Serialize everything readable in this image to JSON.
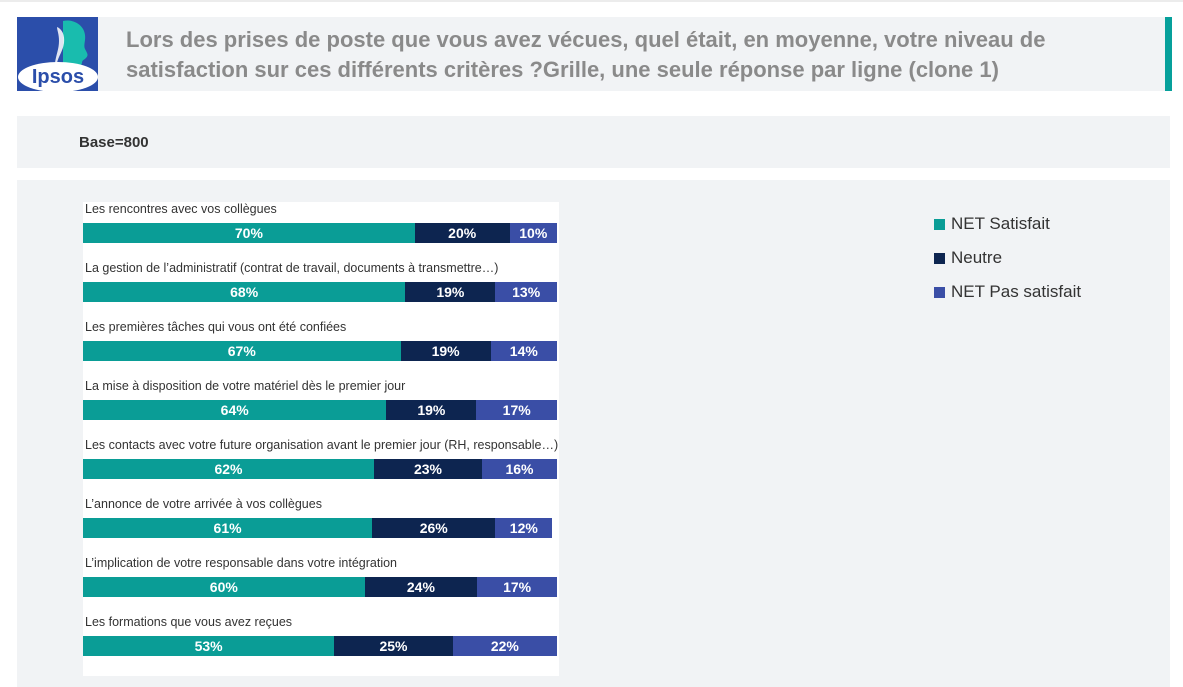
{
  "header": {
    "logo_text": "Ipsos",
    "title": "Lors des prises de poste que vous avez vécues, quel était, en moyenne, votre niveau de satisfaction sur ces différents critères ?Grille, une seule réponse par ligne (clone 1)"
  },
  "base": {
    "label": "Base=800"
  },
  "colors": {
    "accent": "#06a09b",
    "logo_blue": "#2b4eaa",
    "logo_teal": "#19bcae"
  },
  "chart_data": {
    "type": "bar",
    "orientation": "horizontal",
    "stacked": true,
    "categories": [
      "Les rencontres avec vos collègues",
      "La gestion de l’administratif (contrat de travail, documents à transmettre…)",
      "Les premières tâches qui vous ont été confiées",
      "La mise à disposition de votre matériel dès le premier jour",
      "Les contacts avec votre future organisation avant le premier jour (RH, responsable…)",
      "L’annonce de votre arrivée à vos collègues",
      "L’implication de votre responsable dans votre intégration",
      "Les formations que vous avez reçues"
    ],
    "series": [
      {
        "name": "NET Satisfait",
        "color": "#0a9d96",
        "values": [
          70,
          68,
          67,
          64,
          62,
          61,
          60,
          53
        ]
      },
      {
        "name": "Neutre",
        "color": "#0d2550",
        "values": [
          20,
          19,
          19,
          19,
          23,
          26,
          24,
          25
        ]
      },
      {
        "name": "NET Pas satisfait",
        "color": "#3a4ea6",
        "values": [
          10,
          13,
          14,
          17,
          16,
          12,
          17,
          22
        ]
      }
    ],
    "value_suffix": "%",
    "xlim": [
      0,
      100
    ],
    "legend_position": "right",
    "grid": false
  }
}
